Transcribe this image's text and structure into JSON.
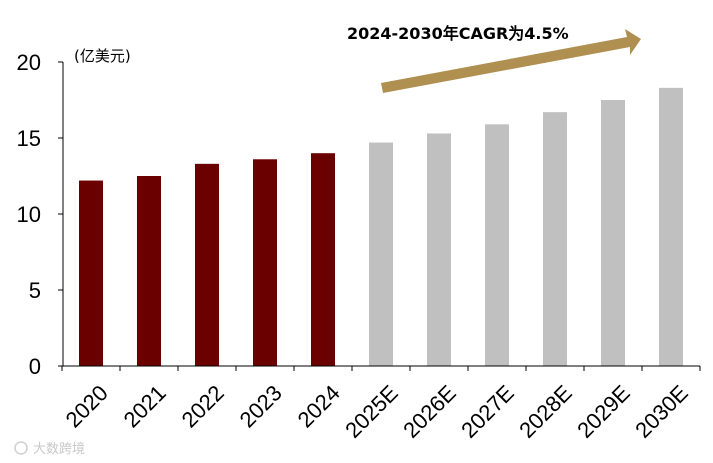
{
  "chart_data": {
    "type": "bar",
    "title": "",
    "xlabel": "",
    "ylabel": "(亿美元)",
    "ylim": [
      0,
      20
    ],
    "yticks": [
      0,
      5,
      10,
      15,
      20
    ],
    "grid": false,
    "legend": "none",
    "categories": [
      "2020",
      "2021",
      "2022",
      "2023",
      "2024",
      "2025E",
      "2026E",
      "2027E",
      "2028E",
      "2029E",
      "2030E"
    ],
    "values": [
      12.2,
      12.5,
      13.3,
      13.6,
      14.0,
      14.7,
      15.3,
      15.9,
      16.7,
      17.5,
      18.3
    ],
    "forecast": [
      false,
      false,
      false,
      false,
      false,
      true,
      true,
      true,
      true,
      true,
      true
    ],
    "annotation": "2024-2030年CAGR为4.5%"
  },
  "colors": {
    "actual": "#6b0000",
    "forecast": "#c0c0c0",
    "arrow": "#b09051",
    "axis": "#000000"
  },
  "watermark": "大数跨境"
}
